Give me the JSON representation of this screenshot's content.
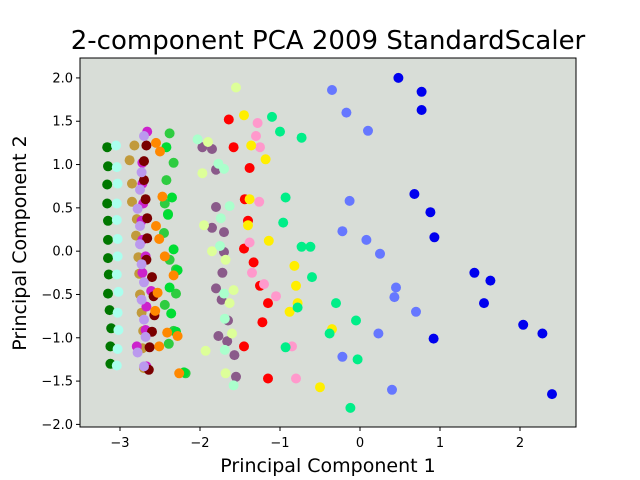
{
  "chart_data": {
    "type": "scatter",
    "title": "2-component PCA 2009 StandardScaler",
    "xlabel": "Principal Component 1",
    "ylabel": "Principal Component 2",
    "xlim": [
      -3.5,
      2.7
    ],
    "ylim": [
      -2.03,
      2.23
    ],
    "xticks": [
      -3,
      -2,
      -1,
      0,
      1,
      2
    ],
    "yticks": [
      -2.0,
      -1.5,
      -1.0,
      -0.5,
      0.0,
      0.5,
      1.0,
      1.5,
      2.0
    ],
    "xtick_labels": [
      "−3",
      "−2",
      "−1",
      "0",
      "1",
      "2"
    ],
    "ytick_labels": [
      "−2.0",
      "−1.5",
      "−1.0",
      "−0.5",
      "0.0",
      "0.5",
      "1.0",
      "1.5",
      "2.0"
    ],
    "grid": false,
    "colors": {
      "plot_background": "#d8ddd7"
    },
    "series": [
      {
        "color": "#007700",
        "points": [
          [
            -3.16,
            1.2
          ],
          [
            -3.15,
            0.98
          ],
          [
            -3.16,
            0.77
          ],
          [
            -3.16,
            0.55
          ],
          [
            -3.15,
            0.35
          ],
          [
            -3.15,
            0.13
          ],
          [
            -3.15,
            -0.08
          ],
          [
            -3.14,
            -0.27
          ],
          [
            -3.15,
            -0.49
          ],
          [
            -3.13,
            -0.68
          ],
          [
            -3.11,
            -0.89
          ],
          [
            -3.12,
            -1.1
          ],
          [
            -3.12,
            -1.3
          ]
        ]
      },
      {
        "color": "#aaffee",
        "points": [
          [
            -3.05,
            1.22
          ],
          [
            -3.04,
            0.97
          ],
          [
            -3.03,
            0.78
          ],
          [
            -3.04,
            0.55
          ],
          [
            -3.04,
            0.36
          ],
          [
            -3.03,
            0.14
          ],
          [
            -3.03,
            -0.06
          ],
          [
            -3.04,
            -0.27
          ],
          [
            -3.02,
            -0.47
          ],
          [
            -3.03,
            -0.71
          ],
          [
            -3.02,
            -0.91
          ],
          [
            -3.03,
            -1.13
          ],
          [
            -3.04,
            -1.32
          ]
        ]
      },
      {
        "color": "#c19a3b",
        "points": [
          [
            -2.82,
            1.22
          ],
          [
            -2.88,
            1.05
          ],
          [
            -2.85,
            0.78
          ],
          [
            -2.85,
            0.57
          ],
          [
            -2.79,
            0.37
          ],
          [
            -2.8,
            0.18
          ],
          [
            -2.77,
            -0.07
          ],
          [
            -2.76,
            -0.26
          ],
          [
            -2.75,
            -0.5
          ],
          [
            -2.73,
            -0.71
          ],
          [
            -2.71,
            -0.92
          ],
          [
            -2.72,
            -1.12
          ],
          [
            -2.7,
            -1.35
          ]
        ]
      },
      {
        "color": "#cc22cc",
        "points": [
          [
            -2.66,
            1.38
          ],
          [
            -2.72,
            1.02
          ],
          [
            -2.72,
            0.78
          ],
          [
            -2.71,
            0.55
          ],
          [
            -2.73,
            0.35
          ],
          [
            -2.72,
            0.13
          ],
          [
            -2.68,
            -0.06
          ],
          [
            -2.72,
            -0.25
          ],
          [
            -2.61,
            -0.46
          ],
          [
            -2.67,
            -0.64
          ],
          [
            -2.68,
            -0.91
          ],
          [
            -2.79,
            -1.1
          ],
          [
            -2.67,
            -1.33
          ]
        ]
      },
      {
        "color": "#7a0000",
        "points": [
          [
            -2.67,
            1.22
          ],
          [
            -2.7,
            1.04
          ],
          [
            -2.7,
            0.82
          ],
          [
            -2.68,
            0.6
          ],
          [
            -2.66,
            0.38
          ],
          [
            -2.66,
            0.15
          ],
          [
            -2.67,
            -0.1
          ],
          [
            -2.6,
            -0.3
          ],
          [
            -2.58,
            -0.52
          ],
          [
            -2.57,
            -0.74
          ],
          [
            -2.6,
            -0.93
          ],
          [
            -2.63,
            -1.11
          ],
          [
            -2.64,
            -1.37
          ]
        ]
      },
      {
        "color": "#bb99ee",
        "points": [
          [
            -2.7,
            1.33
          ],
          [
            -2.73,
            0.91
          ],
          [
            -2.75,
            0.71
          ],
          [
            -2.78,
            0.49
          ],
          [
            -2.75,
            0.29
          ],
          [
            -2.75,
            0.08
          ],
          [
            -2.73,
            -0.15
          ],
          [
            -2.7,
            -0.36
          ],
          [
            -2.73,
            -0.56
          ],
          [
            -2.7,
            -0.79
          ],
          [
            -2.68,
            -0.99
          ],
          [
            -2.78,
            -1.17
          ],
          [
            -2.7,
            -1.33
          ]
        ]
      },
      {
        "color": "#2ecc40",
        "points": [
          [
            -2.38,
            1.36
          ],
          [
            -2.33,
            1.02
          ],
          [
            -2.42,
            0.82
          ],
          [
            -2.44,
            0.55
          ],
          [
            -2.4,
            0.43
          ],
          [
            -2.45,
            0.21
          ],
          [
            -2.38,
            -0.1
          ],
          [
            -2.3,
            -0.21
          ],
          [
            -2.3,
            -0.49
          ],
          [
            -2.44,
            -0.62
          ],
          [
            -2.33,
            -0.92
          ],
          [
            -2.39,
            -1.07
          ],
          [
            -2.18,
            -1.41
          ]
        ]
      },
      {
        "color": "#00dd33",
        "points": [
          [
            -2.42,
            1.2
          ],
          [
            -2.35,
            0.62
          ],
          [
            -2.4,
            0.42
          ],
          [
            -2.33,
            0.02
          ],
          [
            -2.28,
            -0.22
          ],
          [
            -2.38,
            -0.42
          ],
          [
            -2.36,
            -0.72
          ],
          [
            -2.3,
            -0.93
          ],
          [
            -2.2,
            -1.4
          ]
        ]
      },
      {
        "color": "#ff8800",
        "points": [
          [
            -2.55,
            1.25
          ],
          [
            -2.5,
            1.15
          ],
          [
            -2.47,
            0.63
          ],
          [
            -2.55,
            0.29
          ],
          [
            -2.51,
            0.14
          ],
          [
            -2.44,
            -0.06
          ],
          [
            -2.33,
            -0.28
          ],
          [
            -2.53,
            -0.48
          ],
          [
            -2.56,
            -0.69
          ],
          [
            -2.41,
            -0.94
          ],
          [
            -2.28,
            -0.98
          ],
          [
            -2.51,
            -1.1
          ],
          [
            -2.26,
            -1.41
          ]
        ]
      },
      {
        "color": "#8a5a8a",
        "points": [
          [
            -1.97,
            1.2
          ],
          [
            -1.85,
            1.18
          ],
          [
            -1.8,
            0.94
          ],
          [
            -1.8,
            0.51
          ],
          [
            -1.85,
            0.27
          ],
          [
            -1.7,
            0.22
          ],
          [
            -1.7,
            -0.01
          ],
          [
            -1.72,
            -0.25
          ],
          [
            -1.8,
            -0.43
          ],
          [
            -1.73,
            -0.56
          ],
          [
            -1.65,
            -0.8
          ],
          [
            -1.77,
            -0.98
          ],
          [
            -1.66,
            -1.04
          ],
          [
            -1.57,
            -1.2
          ],
          [
            -1.55,
            -1.45
          ]
        ]
      },
      {
        "color": "#ddff99",
        "points": [
          [
            -1.55,
            1.89
          ],
          [
            -1.9,
            1.26
          ],
          [
            -1.97,
            0.9
          ],
          [
            -1.95,
            0.3
          ],
          [
            -1.85,
            0.0
          ],
          [
            -1.68,
            -0.1
          ],
          [
            -1.58,
            -0.45
          ],
          [
            -1.63,
            -0.6
          ],
          [
            -1.6,
            -0.95
          ],
          [
            -1.93,
            -1.15
          ],
          [
            -1.68,
            -1.41
          ]
        ]
      },
      {
        "color": "#aaffcc",
        "points": [
          [
            -2.03,
            1.29
          ],
          [
            -1.77,
            1.01
          ],
          [
            -1.7,
            0.95
          ],
          [
            -1.63,
            0.52
          ],
          [
            -1.74,
            0.38
          ],
          [
            -1.75,
            0.06
          ],
          [
            -1.7,
            -0.49
          ],
          [
            -1.69,
            -0.78
          ],
          [
            -1.69,
            -1.14
          ],
          [
            -1.58,
            -1.55
          ]
        ]
      },
      {
        "color": "#ff0000",
        "points": [
          [
            -1.64,
            1.52
          ],
          [
            -1.58,
            1.2
          ],
          [
            -1.38,
            0.96
          ],
          [
            -1.44,
            0.6
          ],
          [
            -1.4,
            0.35
          ],
          [
            -1.45,
            0.03
          ],
          [
            -1.33,
            -0.13
          ],
          [
            -1.25,
            -0.4
          ],
          [
            -1.15,
            -0.6
          ],
          [
            -1.22,
            -0.82
          ],
          [
            -1.45,
            -1.1
          ],
          [
            -1.15,
            -1.47
          ]
        ]
      },
      {
        "color": "#ff99cc",
        "points": [
          [
            -1.28,
            1.48
          ],
          [
            -1.3,
            1.33
          ],
          [
            -1.25,
            1.2
          ],
          [
            -1.26,
            0.57
          ],
          [
            -1.38,
            0.1
          ],
          [
            -1.35,
            -0.25
          ],
          [
            -1.2,
            -0.38
          ],
          [
            -1.05,
            -0.52
          ],
          [
            -0.85,
            -1.1
          ],
          [
            -0.8,
            -1.47
          ]
        ]
      },
      {
        "color": "#ffee00",
        "points": [
          [
            -1.45,
            1.57
          ],
          [
            -1.36,
            1.22
          ],
          [
            -1.18,
            1.06
          ],
          [
            -1.38,
            0.6
          ],
          [
            -1.4,
            0.3
          ],
          [
            -1.14,
            0.12
          ],
          [
            -0.82,
            -0.17
          ],
          [
            -0.8,
            -0.4
          ],
          [
            -0.78,
            -0.6
          ],
          [
            -0.88,
            -0.7
          ],
          [
            -0.35,
            -0.9
          ],
          [
            -0.5,
            -1.57
          ]
        ]
      },
      {
        "color": "#00ee88",
        "points": [
          [
            -1.1,
            1.55
          ],
          [
            -1.0,
            1.38
          ],
          [
            -0.73,
            1.31
          ],
          [
            -0.93,
            0.62
          ],
          [
            -0.96,
            0.33
          ],
          [
            -0.73,
            0.05
          ],
          [
            -0.62,
            0.05
          ],
          [
            -0.6,
            -0.3
          ],
          [
            -0.78,
            -0.65
          ],
          [
            -0.3,
            -0.6
          ],
          [
            -0.05,
            -0.8
          ],
          [
            -0.38,
            -0.95
          ],
          [
            -0.93,
            -1.11
          ],
          [
            -0.03,
            -1.25
          ],
          [
            -0.12,
            -1.81
          ]
        ]
      },
      {
        "color": "#6677ff",
        "points": [
          [
            -0.35,
            1.86
          ],
          [
            -0.17,
            1.6
          ],
          [
            0.1,
            1.39
          ],
          [
            -0.13,
            0.58
          ],
          [
            -0.22,
            0.23
          ],
          [
            0.08,
            0.13
          ],
          [
            0.25,
            -0.03
          ],
          [
            0.45,
            -0.42
          ],
          [
            0.43,
            -0.53
          ],
          [
            0.7,
            -0.7
          ],
          [
            0.23,
            -0.95
          ],
          [
            -0.22,
            -1.22
          ],
          [
            0.4,
            -1.6
          ]
        ]
      },
      {
        "color": "#0000ee",
        "points": [
          [
            0.48,
            2.0
          ],
          [
            0.77,
            1.84
          ],
          [
            0.77,
            1.63
          ],
          [
            0.68,
            0.66
          ],
          [
            0.88,
            0.45
          ],
          [
            0.93,
            0.16
          ],
          [
            1.43,
            -0.25
          ],
          [
            1.63,
            -0.34
          ],
          [
            1.55,
            -0.6
          ],
          [
            2.04,
            -0.85
          ],
          [
            2.28,
            -0.95
          ],
          [
            0.92,
            -1.01
          ],
          [
            2.4,
            -1.65
          ]
        ]
      }
    ]
  }
}
